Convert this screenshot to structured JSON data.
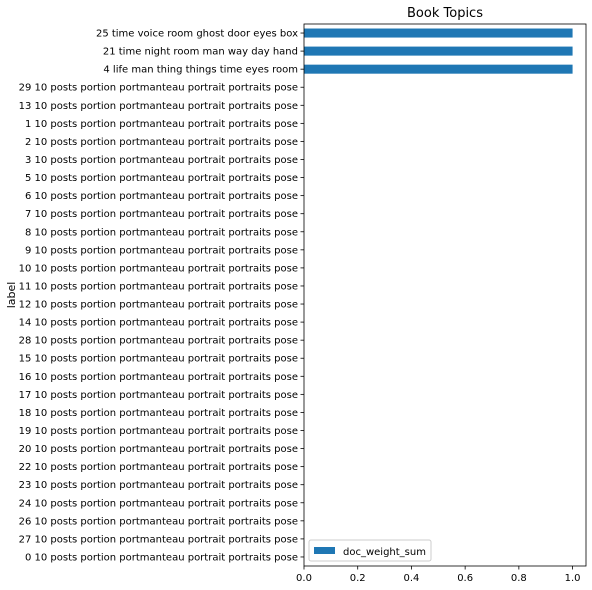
{
  "chart_data": {
    "type": "bar",
    "orientation": "horizontal",
    "title": "Book Topics",
    "xlabel": "",
    "ylabel": "label",
    "xlim": [
      0,
      1.05
    ],
    "xticks": [
      {
        "value": 0.0,
        "label": "0.0"
      },
      {
        "value": 0.2,
        "label": "0.2"
      },
      {
        "value": 0.4,
        "label": "0.4"
      },
      {
        "value": 0.6,
        "label": "0.6"
      },
      {
        "value": 0.8,
        "label": "0.8"
      },
      {
        "value": 1.0,
        "label": "1.0"
      }
    ],
    "grid": false,
    "legend": {
      "position": "lower-left",
      "entries": [
        "doc_weight_sum"
      ]
    },
    "series": [
      {
        "name": "doc_weight_sum",
        "color": "#1f77b4",
        "values": [
          1,
          1,
          1,
          0,
          0,
          0,
          0,
          0,
          0,
          0,
          0,
          0,
          0,
          0,
          0,
          0,
          0,
          0,
          0,
          0,
          0,
          0,
          0,
          0,
          0,
          0,
          0,
          0,
          0,
          0
        ]
      }
    ],
    "categories": [
      "25 time voice room ghost door eyes box",
      "21 time night room man way day hand",
      "4 life man thing things time eyes room",
      "29 10 posts portion portmanteau portrait portraits pose",
      "13 10 posts portion portmanteau portrait portraits pose",
      "1 10 posts portion portmanteau portrait portraits pose",
      "2 10 posts portion portmanteau portrait portraits pose",
      "3 10 posts portion portmanteau portrait portraits pose",
      "5 10 posts portion portmanteau portrait portraits pose",
      "6 10 posts portion portmanteau portrait portraits pose",
      "7 10 posts portion portmanteau portrait portraits pose",
      "8 10 posts portion portmanteau portrait portraits pose",
      "9 10 posts portion portmanteau portrait portraits pose",
      "10 10 posts portion portmanteau portrait portraits pose",
      "11 10 posts portion portmanteau portrait portraits pose",
      "12 10 posts portion portmanteau portrait portraits pose",
      "14 10 posts portion portmanteau portrait portraits pose",
      "28 10 posts portion portmanteau portrait portraits pose",
      "15 10 posts portion portmanteau portrait portraits pose",
      "16 10 posts portion portmanteau portrait portraits pose",
      "17 10 posts portion portmanteau portrait portraits pose",
      "18 10 posts portion portmanteau portrait portraits pose",
      "19 10 posts portion portmanteau portrait portraits pose",
      "20 10 posts portion portmanteau portrait portraits pose",
      "22 10 posts portion portmanteau portrait portraits pose",
      "23 10 posts portion portmanteau portrait portraits pose",
      "24 10 posts portion portmanteau portrait portraits pose",
      "26 10 posts portion portmanteau portrait portraits pose",
      "27 10 posts portion portmanteau portrait portraits pose",
      "0 10 posts portion portmanteau portrait portraits pose"
    ]
  }
}
